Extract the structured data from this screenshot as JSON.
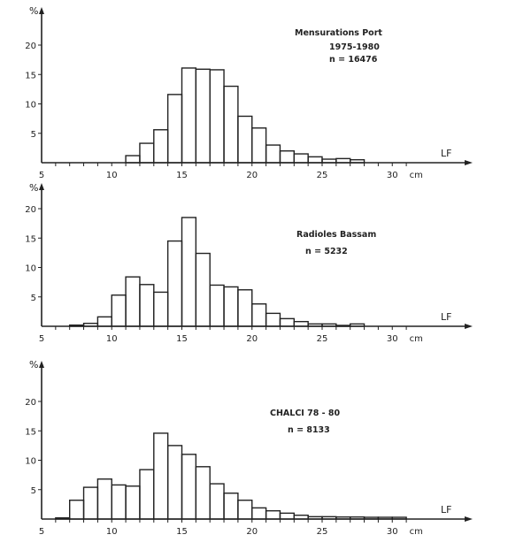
{
  "chart_data": [
    {
      "type": "bar",
      "ylabel": "%",
      "xlabel": "LF",
      "x_unit": "cm",
      "annotation": [
        "Mensurations Port",
        "1975-1980",
        "n = 16476"
      ],
      "xlim": [
        5,
        32
      ],
      "ylim": [
        0,
        22
      ],
      "x_ticks": [
        5,
        10,
        15,
        20,
        25,
        30
      ],
      "y_ticks": [
        5,
        10,
        15,
        20
      ],
      "grid": false,
      "bins": [
        11,
        12,
        13,
        14,
        15,
        16,
        17,
        18,
        19,
        20,
        21,
        22,
        23,
        24,
        25,
        26,
        27
      ],
      "values": [
        1.2,
        3.3,
        5.6,
        11.6,
        16.1,
        15.9,
        15.8,
        13.0,
        7.9,
        5.9,
        3.0,
        2.0,
        1.5,
        1.0,
        0.6,
        0.7,
        0.5
      ]
    },
    {
      "type": "bar",
      "ylabel": "%",
      "xlabel": "LF",
      "x_unit": "cm",
      "annotation": [
        "Radioles Bassam",
        "n = 5232"
      ],
      "xlim": [
        5,
        32
      ],
      "ylim": [
        0,
        22
      ],
      "x_ticks": [
        5,
        10,
        15,
        20,
        25,
        30
      ],
      "y_ticks": [
        5,
        10,
        15,
        20
      ],
      "grid": false,
      "bins": [
        7,
        8,
        9,
        10,
        11,
        12,
        13,
        14,
        15,
        16,
        17,
        18,
        19,
        20,
        21,
        22,
        23,
        24,
        25,
        26,
        27
      ],
      "values": [
        0.2,
        0.5,
        1.6,
        5.3,
        8.4,
        7.1,
        5.8,
        14.5,
        18.5,
        12.4,
        7.0,
        6.7,
        6.2,
        3.8,
        2.2,
        1.3,
        0.8,
        0.4,
        0.4,
        0.15,
        0.4
      ]
    },
    {
      "type": "bar",
      "ylabel": "%",
      "xlabel": "LF",
      "x_unit": "cm",
      "annotation": [
        "CHALCI 78 - 80",
        "n = 8133"
      ],
      "xlim": [
        5,
        32
      ],
      "ylim": [
        0,
        22
      ],
      "x_ticks": [
        5,
        10,
        15,
        20,
        25,
        30
      ],
      "y_ticks": [
        5,
        10,
        15,
        20
      ],
      "grid": false,
      "bins": [
        6,
        7,
        8,
        9,
        10,
        11,
        12,
        13,
        14,
        15,
        16,
        17,
        18,
        19,
        20,
        21,
        22,
        23,
        24,
        25,
        26,
        27,
        28,
        29,
        30
      ],
      "values": [
        0.2,
        3.2,
        5.4,
        6.8,
        5.8,
        5.6,
        8.4,
        14.6,
        12.5,
        11.0,
        8.9,
        6.0,
        4.4,
        3.2,
        1.9,
        1.4,
        1.0,
        0.65,
        0.4,
        0.4,
        0.35,
        0.35,
        0.3,
        0.3,
        0.3
      ]
    }
  ]
}
